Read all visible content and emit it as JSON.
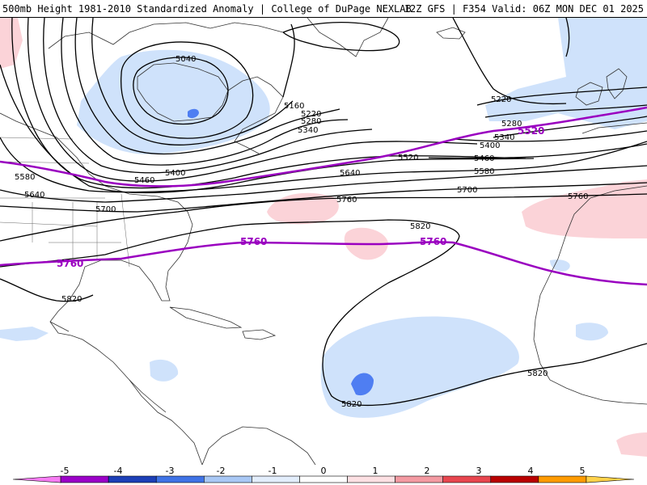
{
  "header": {
    "title_left": "500mb Height 1981-2010 Standardized Anomaly | College of DuPage NEXLAB",
    "title_right": "12Z GFS | F354 Valid: 06Z MON DEC 01 2025"
  },
  "colors": {
    "contour": "#000000",
    "highlight_contour": "#9a00c0",
    "coast": "#333333",
    "anomaly_neg_1": "#cfe2fb",
    "anomaly_neg_2": "#4f7ef2",
    "anomaly_pos_1": "#fbd3d8"
  },
  "map": {
    "contour_labels": [
      {
        "id": "5040",
        "text": "5040"
      },
      {
        "id": "5160",
        "text": "5160"
      },
      {
        "id": "5220a",
        "text": "5220"
      },
      {
        "id": "5280a",
        "text": "5280"
      },
      {
        "id": "5340a",
        "text": "5340"
      },
      {
        "id": "5400a",
        "text": "5400"
      },
      {
        "id": "5460a",
        "text": "5460"
      },
      {
        "id": "5220b",
        "text": "5220"
      },
      {
        "id": "5280b",
        "text": "5280"
      },
      {
        "id": "5340b",
        "text": "5340"
      },
      {
        "id": "5400b",
        "text": "5400"
      },
      {
        "id": "5460b",
        "text": "5460"
      },
      {
        "id": "5520a",
        "text": "5520"
      },
      {
        "id": "5580a",
        "text": "5580"
      },
      {
        "id": "5640a",
        "text": "5640"
      },
      {
        "id": "5700a",
        "text": "5700"
      },
      {
        "id": "5580b",
        "text": "5580"
      },
      {
        "id": "5640b",
        "text": "5640"
      },
      {
        "id": "5700b",
        "text": "5700"
      },
      {
        "id": "5760a",
        "text": "5760"
      },
      {
        "id": "5760b",
        "text": "5760"
      },
      {
        "id": "5820a",
        "text": "5820"
      },
      {
        "id": "5820b",
        "text": "5820"
      },
      {
        "id": "5820c",
        "text": "5820"
      },
      {
        "id": "5820d",
        "text": "5820"
      }
    ],
    "highlight_labels": [
      {
        "id": "h5520",
        "text": "5520"
      },
      {
        "id": "h5760a",
        "text": "5760"
      },
      {
        "id": "h5760b",
        "text": "5760"
      },
      {
        "id": "h5760c",
        "text": "5760"
      }
    ]
  },
  "colorbar": {
    "ticks": [
      "-5",
      "-4",
      "-3",
      "-2",
      "-1",
      "0",
      "1",
      "2",
      "3",
      "4",
      "5"
    ],
    "colors": [
      "#f77cf3",
      "#9b00c8",
      "#1c3fb7",
      "#3f73e6",
      "#a9c8f5",
      "#e3eefc",
      "#ffffff",
      "#fde0e3",
      "#f49aa2",
      "#e8464f",
      "#b90000",
      "#ff9b00",
      "#ffd24a"
    ]
  }
}
